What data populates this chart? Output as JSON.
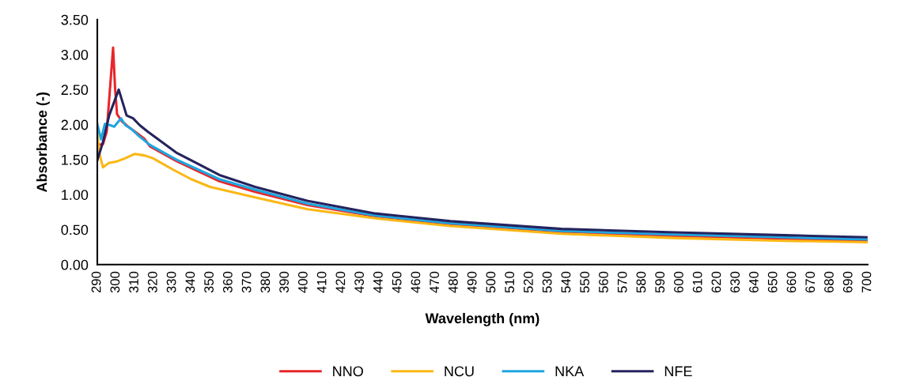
{
  "chart_data": {
    "type": "line",
    "xlabel": "Wavelength (nm)",
    "ylabel": "Absorbance (-)",
    "xlim": [
      290,
      700
    ],
    "xticks": [
      290,
      300,
      310,
      320,
      330,
      340,
      350,
      360,
      370,
      380,
      390,
      400,
      410,
      420,
      430,
      440,
      450,
      460,
      470,
      480,
      490,
      500,
      510,
      520,
      530,
      540,
      550,
      560,
      570,
      580,
      590,
      600,
      610,
      620,
      630,
      640,
      650,
      660,
      670,
      680,
      690,
      700
    ],
    "ylim": [
      0,
      3.5
    ],
    "yticks": [
      {
        "value": 0,
        "label": "0.00"
      },
      {
        "value": 0.5,
        "label": "0.50"
      },
      {
        "value": 1,
        "label": "1.00"
      },
      {
        "value": 1.5,
        "label": "1.50"
      },
      {
        "value": 2,
        "label": "2.00"
      },
      {
        "value": 2.5,
        "label": "2.50"
      },
      {
        "value": 3,
        "label": "3.00"
      },
      {
        "value": 3.5,
        "label": "3.50"
      }
    ],
    "grid": false,
    "legend": "bottom",
    "marker": "none",
    "line_style": "solid",
    "series": [
      {
        "name": "NNO",
        "color": "#e8262a",
        "x": [
          290,
          293,
          295,
          297,
          298.4,
          299.5,
          300.5,
          303,
          306,
          310,
          315,
          318,
          332,
          355,
          374,
          402,
          438,
          478,
          537,
          597,
          656,
          700
        ],
        "values": [
          1.71,
          1.72,
          1.9,
          2.6,
          3.1,
          2.5,
          2.15,
          2.05,
          1.98,
          1.9,
          1.8,
          1.69,
          1.48,
          1.19,
          1.04,
          0.85,
          0.69,
          0.58,
          0.47,
          0.41,
          0.37,
          0.34
        ]
      },
      {
        "name": "NCU",
        "color": "#fbb714",
        "x": [
          290,
          291,
          293,
          296,
          300,
          305,
          309.8,
          315,
          319.5,
          330.8,
          340,
          350,
          374,
          402,
          438,
          478,
          537,
          597,
          656,
          700
        ],
        "values": [
          1.88,
          1.6,
          1.39,
          1.45,
          1.47,
          1.52,
          1.58,
          1.56,
          1.52,
          1.35,
          1.22,
          1.11,
          0.96,
          0.79,
          0.66,
          0.55,
          0.44,
          0.38,
          0.34,
          0.32
        ]
      },
      {
        "name": "NKA",
        "color": "#1fa6e0",
        "x": [
          290,
          292,
          294,
          297,
          299,
          302.6,
          305,
          308,
          312,
          318,
          332,
          355,
          374,
          402,
          438,
          478,
          537,
          597,
          656,
          700
        ],
        "values": [
          2.01,
          1.79,
          2.01,
          1.99,
          1.97,
          2.09,
          1.99,
          1.94,
          1.84,
          1.71,
          1.5,
          1.22,
          1.07,
          0.87,
          0.7,
          0.59,
          0.48,
          0.43,
          0.39,
          0.36
        ]
      },
      {
        "name": "NFE",
        "color": "#25235e",
        "x": [
          290,
          293,
          296.3,
          301.4,
          305.6,
          309,
          312.6,
          316.8,
          332,
          355,
          374,
          402,
          438,
          478,
          537,
          597,
          656,
          700
        ],
        "values": [
          1.49,
          1.75,
          2.13,
          2.5,
          2.13,
          2.09,
          1.99,
          1.9,
          1.6,
          1.28,
          1.11,
          0.91,
          0.73,
          0.62,
          0.51,
          0.46,
          0.42,
          0.39
        ]
      }
    ]
  }
}
